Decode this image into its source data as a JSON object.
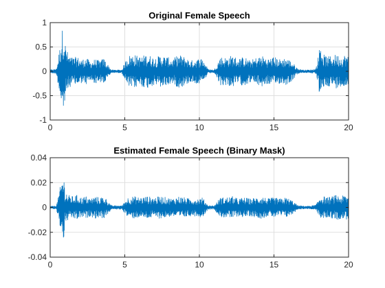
{
  "chart_data": [
    {
      "type": "line",
      "title": "Original Female Speech",
      "xlabel": "",
      "ylabel": "",
      "xlim": [
        0,
        20
      ],
      "ylim": [
        -1,
        1
      ],
      "xticks": [
        0,
        5,
        10,
        15,
        20
      ],
      "yticks": [
        -1,
        -0.5,
        0,
        0.5,
        1
      ],
      "xtick_labels": [
        "0",
        "5",
        "10",
        "15",
        "20"
      ],
      "ytick_labels": [
        "-1",
        "-0.5",
        "0",
        "0.5",
        "1"
      ],
      "grid": true,
      "line_color": "#0072bd",
      "envelope": {
        "x": [
          0.0,
          0.4,
          0.5,
          0.6,
          0.7,
          0.8,
          0.9,
          1.0,
          1.2,
          1.5,
          1.8,
          2.1,
          2.4,
          2.7,
          3.0,
          3.3,
          3.6,
          3.9,
          4.1,
          4.4,
          4.8,
          5.2,
          5.6,
          6.0,
          6.5,
          7.0,
          7.4,
          7.8,
          8.2,
          8.6,
          9.0,
          9.4,
          9.8,
          10.2,
          10.6,
          11.0,
          11.4,
          11.8,
          12.2,
          12.6,
          13.0,
          13.4,
          13.8,
          14.2,
          14.6,
          15.0,
          15.4,
          15.8,
          16.2,
          16.6,
          17.0,
          17.4,
          17.8,
          18.0,
          18.1,
          18.3,
          18.6,
          18.9,
          19.2,
          19.5,
          19.8,
          20.0
        ],
        "amplitude": [
          0.03,
          0.05,
          0.2,
          0.4,
          0.6,
          0.85,
          0.95,
          0.6,
          0.35,
          0.28,
          0.3,
          0.24,
          0.28,
          0.2,
          0.25,
          0.22,
          0.27,
          0.12,
          0.03,
          0.03,
          0.03,
          0.32,
          0.35,
          0.3,
          0.35,
          0.28,
          0.33,
          0.3,
          0.25,
          0.34,
          0.3,
          0.22,
          0.25,
          0.28,
          0.04,
          0.03,
          0.3,
          0.28,
          0.33,
          0.26,
          0.3,
          0.22,
          0.28,
          0.32,
          0.26,
          0.3,
          0.25,
          0.28,
          0.2,
          0.05,
          0.03,
          0.03,
          0.05,
          0.35,
          0.65,
          0.35,
          0.3,
          0.32,
          0.35,
          0.3,
          0.35,
          0.3
        ]
      }
    },
    {
      "type": "line",
      "title": "Estimated Female Speech (Binary Mask)",
      "xlabel": "",
      "ylabel": "",
      "xlim": [
        0,
        20
      ],
      "ylim": [
        -0.04,
        0.04
      ],
      "xticks": [
        0,
        5,
        10,
        15,
        20
      ],
      "yticks": [
        -0.04,
        -0.02,
        0,
        0.02,
        0.04
      ],
      "xtick_labels": [
        "0",
        "5",
        "10",
        "15",
        "20"
      ],
      "ytick_labels": [
        "-0.04",
        "-0.02",
        "0",
        "0.02",
        "0.04"
      ],
      "grid": true,
      "line_color": "#0072bd",
      "envelope": {
        "x": [
          0.0,
          0.4,
          0.5,
          0.6,
          0.7,
          0.8,
          0.9,
          1.0,
          1.2,
          1.5,
          1.8,
          2.1,
          2.4,
          2.7,
          3.0,
          3.3,
          3.6,
          3.9,
          4.1,
          4.4,
          4.8,
          5.2,
          5.6,
          6.0,
          6.5,
          7.0,
          7.4,
          7.8,
          8.2,
          8.6,
          9.0,
          9.4,
          9.8,
          10.2,
          10.6,
          11.0,
          11.4,
          11.8,
          12.2,
          12.6,
          13.0,
          13.4,
          13.8,
          14.2,
          14.6,
          15.0,
          15.4,
          15.8,
          16.2,
          16.6,
          17.0,
          17.4,
          17.8,
          18.0,
          18.1,
          18.3,
          18.6,
          18.9,
          19.2,
          19.5,
          19.8,
          20.0
        ],
        "amplitude": [
          0.0008,
          0.0015,
          0.006,
          0.012,
          0.018,
          0.025,
          0.027,
          0.015,
          0.01,
          0.009,
          0.01,
          0.008,
          0.009,
          0.007,
          0.009,
          0.008,
          0.009,
          0.005,
          0.0015,
          0.0015,
          0.0015,
          0.008,
          0.009,
          0.008,
          0.009,
          0.008,
          0.009,
          0.008,
          0.007,
          0.009,
          0.008,
          0.007,
          0.007,
          0.008,
          0.0015,
          0.0015,
          0.008,
          0.008,
          0.009,
          0.007,
          0.008,
          0.007,
          0.008,
          0.009,
          0.007,
          0.008,
          0.007,
          0.008,
          0.006,
          0.0015,
          0.0012,
          0.0012,
          0.002,
          0.006,
          0.01,
          0.009,
          0.008,
          0.009,
          0.01,
          0.009,
          0.01,
          0.009
        ]
      }
    }
  ]
}
